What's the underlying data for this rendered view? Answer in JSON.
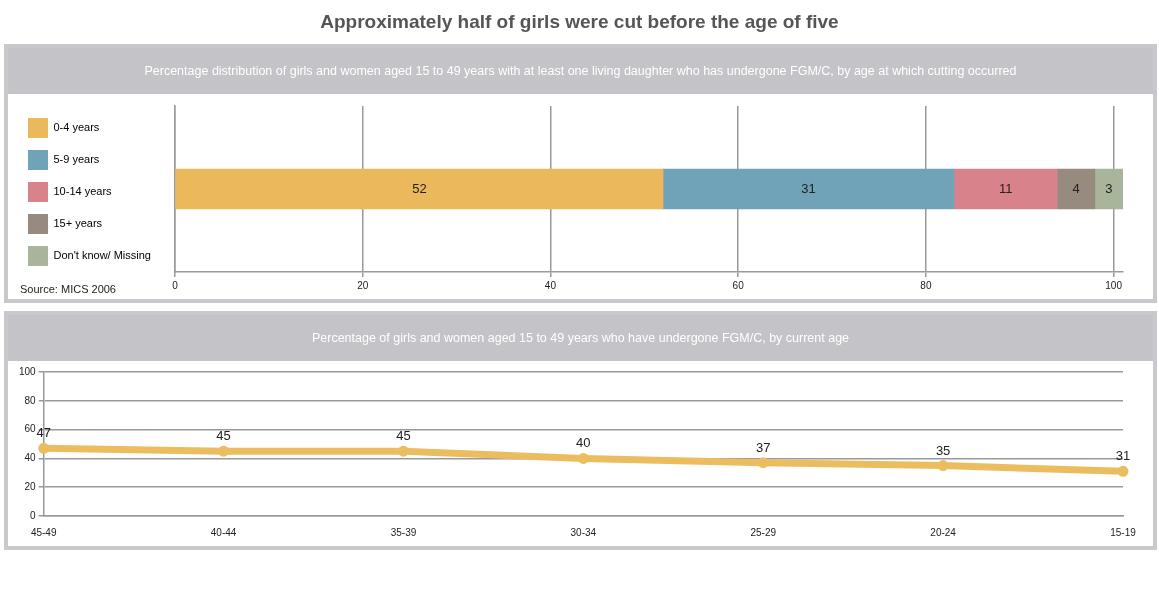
{
  "chart_data": [
    {
      "type": "bar",
      "title": "Approximately half of girls were cut before the age of five",
      "subtitle": "Percentage distribution of girls and women aged 15 to 49 years with at least one living daughter who has undergone FGM/C, by age at which cutting occurred",
      "orientation": "horizontal",
      "stacked": true,
      "categories": [
        null
      ],
      "series": [
        {
          "name": "0-4 years",
          "color": "#ebb95b",
          "values": [
            52
          ]
        },
        {
          "name": "5-9 years",
          "color": "#70a2b8",
          "values": [
            31
          ]
        },
        {
          "name": "10-14 years",
          "color": "#d8838c",
          "values": [
            11
          ]
        },
        {
          "name": "15+ years",
          "color": "#978a7e",
          "values": [
            4
          ]
        },
        {
          "name": "Don't know/ Missing",
          "color": "#a8b59a",
          "values": [
            3
          ]
        }
      ],
      "xlim": [
        0,
        101
      ],
      "xticks": [
        0,
        20,
        40,
        60,
        80,
        100
      ],
      "grid": "x",
      "legend": "left",
      "data_labels": true,
      "annotations": [
        "Source: MICS 2006"
      ]
    },
    {
      "type": "line",
      "title": "Percentage of girls and  women aged 15 to 49 years who have undergone FGM/C, by current age",
      "categories": [
        "45-49",
        "40-44",
        "35-39",
        "30-34",
        "25-29",
        "20-24",
        "15-19"
      ],
      "series": [
        {
          "color": "#ebbd5e",
          "values": [
            47,
            45,
            45,
            40,
            37,
            35,
            31
          ]
        }
      ],
      "ylim": [
        0,
        100
      ],
      "yticks": [
        0,
        20,
        40,
        60,
        80,
        100
      ],
      "grid": "y",
      "marker": "circle",
      "line_style": "solid",
      "data_labels": true
    }
  ]
}
